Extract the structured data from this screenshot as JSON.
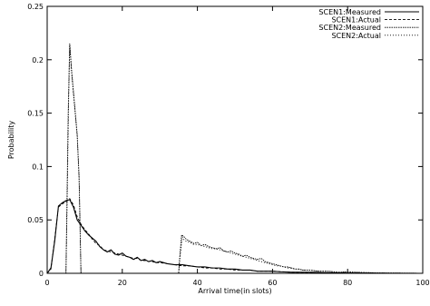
{
  "chart_data": {
    "type": "line",
    "title": "",
    "xlabel": "Arrival time(in slots)",
    "ylabel": "Probability",
    "xlim": [
      0,
      100
    ],
    "ylim": [
      0,
      0.25
    ],
    "x_ticks": [
      0,
      20,
      40,
      60,
      80,
      100
    ],
    "y_ticks": [
      0,
      0.05,
      0.1,
      0.15,
      0.2,
      0.25
    ],
    "x_tick_labels": [
      "0",
      "20",
      "40",
      "60",
      "80",
      "100"
    ],
    "y_tick_labels": [
      "0",
      "0.05",
      "0.1",
      "0.15",
      "0.2",
      "0.25"
    ],
    "grid": false,
    "legend_position": "top-right",
    "series": [
      {
        "name": "SCEN1:Measured",
        "dash": "solid",
        "points": [
          [
            0,
            0
          ],
          [
            1,
            0.005
          ],
          [
            2,
            0.03
          ],
          [
            3,
            0.063
          ],
          [
            4,
            0.066
          ],
          [
            5,
            0.068
          ],
          [
            6,
            0.069
          ],
          [
            7,
            0.062
          ],
          [
            8,
            0.05
          ],
          [
            9,
            0.045
          ],
          [
            10,
            0.04
          ],
          [
            11,
            0.036
          ],
          [
            12,
            0.033
          ],
          [
            13,
            0.03
          ],
          [
            14,
            0.025
          ],
          [
            15,
            0.022
          ],
          [
            16,
            0.02
          ],
          [
            17,
            0.022
          ],
          [
            18,
            0.018
          ],
          [
            19,
            0.017
          ],
          [
            20,
            0.019
          ],
          [
            21,
            0.016
          ],
          [
            22,
            0.015
          ],
          [
            23,
            0.013
          ],
          [
            24,
            0.015
          ],
          [
            25,
            0.012
          ],
          [
            26,
            0.013
          ],
          [
            27,
            0.011
          ],
          [
            28,
            0.012
          ],
          [
            29,
            0.01
          ],
          [
            30,
            0.011
          ],
          [
            32,
            0.009
          ],
          [
            34,
            0.008
          ],
          [
            36,
            0.008
          ],
          [
            38,
            0.007
          ],
          [
            40,
            0.006
          ],
          [
            42,
            0.006
          ],
          [
            44,
            0.005
          ],
          [
            46,
            0.005
          ],
          [
            48,
            0.004
          ],
          [
            50,
            0.004
          ],
          [
            52,
            0.003
          ],
          [
            54,
            0.003
          ],
          [
            56,
            0.002
          ],
          [
            58,
            0.002
          ],
          [
            60,
            0.002
          ],
          [
            62,
            0.0015
          ],
          [
            65,
            0.001
          ],
          [
            70,
            0.001
          ],
          [
            75,
            0.0005
          ],
          [
            80,
            0.0003
          ],
          [
            85,
            0.0002
          ],
          [
            90,
            0.0001
          ],
          [
            100,
            0
          ]
        ]
      },
      {
        "name": "SCEN1:Actual",
        "dash": "dashed",
        "points": [
          [
            0,
            0
          ],
          [
            1,
            0.004
          ],
          [
            2,
            0.032
          ],
          [
            3,
            0.062
          ],
          [
            4,
            0.065
          ],
          [
            5,
            0.067
          ],
          [
            6,
            0.07
          ],
          [
            7,
            0.064
          ],
          [
            8,
            0.053
          ],
          [
            9,
            0.046
          ],
          [
            10,
            0.041
          ],
          [
            11,
            0.037
          ],
          [
            12,
            0.032
          ],
          [
            13,
            0.028
          ],
          [
            14,
            0.026
          ],
          [
            15,
            0.022
          ],
          [
            16,
            0.021
          ],
          [
            17,
            0.02
          ],
          [
            18,
            0.019
          ],
          [
            19,
            0.018
          ],
          [
            20,
            0.017
          ],
          [
            21,
            0.016
          ],
          [
            22,
            0.015
          ],
          [
            23,
            0.014
          ],
          [
            24,
            0.014
          ],
          [
            25,
            0.012
          ],
          [
            26,
            0.012
          ],
          [
            27,
            0.011
          ],
          [
            28,
            0.011
          ],
          [
            29,
            0.01
          ],
          [
            30,
            0.01
          ],
          [
            32,
            0.009
          ],
          [
            34,
            0.008
          ],
          [
            36,
            0.007
          ],
          [
            38,
            0.007
          ],
          [
            40,
            0.006
          ],
          [
            42,
            0.005
          ],
          [
            44,
            0.005
          ],
          [
            46,
            0.004
          ],
          [
            48,
            0.004
          ],
          [
            50,
            0.003
          ],
          [
            52,
            0.003
          ],
          [
            54,
            0.003
          ],
          [
            56,
            0.002
          ],
          [
            58,
            0.002
          ],
          [
            60,
            0.002
          ],
          [
            62,
            0.0015
          ],
          [
            65,
            0.001
          ],
          [
            70,
            0.0008
          ],
          [
            75,
            0.0005
          ],
          [
            80,
            0.0003
          ],
          [
            85,
            0.0002
          ],
          [
            90,
            0.0001
          ],
          [
            100,
            0
          ]
        ]
      },
      {
        "name": "SCEN2:Measured",
        "dash": "dotted-dense",
        "points": [
          [
            0,
            0
          ],
          [
            5,
            0
          ],
          [
            5.2,
            0.05
          ],
          [
            5.6,
            0.15
          ],
          [
            6,
            0.215
          ],
          [
            6.5,
            0.19
          ],
          [
            7,
            0.17
          ],
          [
            7.5,
            0.15
          ],
          [
            8,
            0.13
          ],
          [
            8.5,
            0.09
          ],
          [
            9,
            0
          ],
          [
            35,
            0
          ],
          [
            35.3,
            0.015
          ],
          [
            35.8,
            0.036
          ],
          [
            36.5,
            0.034
          ],
          [
            37,
            0.032
          ],
          [
            38,
            0.03
          ],
          [
            39,
            0.028
          ],
          [
            40,
            0.029
          ],
          [
            41,
            0.026
          ],
          [
            42,
            0.027
          ],
          [
            43,
            0.025
          ],
          [
            44,
            0.024
          ],
          [
            45,
            0.023
          ],
          [
            46,
            0.024
          ],
          [
            47,
            0.021
          ],
          [
            48,
            0.02
          ],
          [
            49,
            0.021
          ],
          [
            50,
            0.019
          ],
          [
            51,
            0.018
          ],
          [
            52,
            0.016
          ],
          [
            53,
            0.017
          ],
          [
            54,
            0.015
          ],
          [
            55,
            0.014
          ],
          [
            56,
            0.013
          ],
          [
            57,
            0.014
          ],
          [
            58,
            0.011
          ],
          [
            59,
            0.01
          ],
          [
            60,
            0.009
          ],
          [
            61,
            0.008
          ],
          [
            62,
            0.007
          ],
          [
            63,
            0.006
          ],
          [
            64,
            0.006
          ],
          [
            65,
            0.005
          ],
          [
            66,
            0.004
          ],
          [
            67,
            0.004
          ],
          [
            68,
            0.003
          ],
          [
            70,
            0.003
          ],
          [
            72,
            0.002
          ],
          [
            74,
            0.002
          ],
          [
            76,
            0.0015
          ],
          [
            78,
            0.001
          ],
          [
            80,
            0.0015
          ],
          [
            82,
            0.001
          ],
          [
            84,
            0.0008
          ],
          [
            86,
            0.0006
          ],
          [
            88,
            0.0004
          ],
          [
            90,
            0.0003
          ],
          [
            94,
            0.0002
          ],
          [
            98,
            0.0001
          ],
          [
            100,
            0
          ]
        ]
      },
      {
        "name": "SCEN2:Actual",
        "dash": "dotted-sparse",
        "points": [
          [
            0,
            0
          ],
          [
            5,
            0
          ],
          [
            5.3,
            0.06
          ],
          [
            5.7,
            0.16
          ],
          [
            6,
            0.214
          ],
          [
            6.5,
            0.188
          ],
          [
            7,
            0.168
          ],
          [
            7.5,
            0.148
          ],
          [
            8,
            0.128
          ],
          [
            8.5,
            0.088
          ],
          [
            9,
            0
          ],
          [
            35,
            0
          ],
          [
            35.4,
            0.016
          ],
          [
            36,
            0.034
          ],
          [
            36.5,
            0.031
          ],
          [
            37,
            0.03
          ],
          [
            38,
            0.029
          ],
          [
            39,
            0.027
          ],
          [
            40,
            0.027
          ],
          [
            41,
            0.026
          ],
          [
            42,
            0.025
          ],
          [
            43,
            0.024
          ],
          [
            44,
            0.023
          ],
          [
            45,
            0.023
          ],
          [
            46,
            0.022
          ],
          [
            47,
            0.021
          ],
          [
            48,
            0.02
          ],
          [
            49,
            0.019
          ],
          [
            50,
            0.018
          ],
          [
            51,
            0.017
          ],
          [
            52,
            0.016
          ],
          [
            53,
            0.015
          ],
          [
            54,
            0.014
          ],
          [
            55,
            0.013
          ],
          [
            56,
            0.012
          ],
          [
            57,
            0.011
          ],
          [
            58,
            0.01
          ],
          [
            59,
            0.009
          ],
          [
            60,
            0.008
          ],
          [
            61,
            0.007
          ],
          [
            62,
            0.007
          ],
          [
            63,
            0.006
          ],
          [
            64,
            0.005
          ],
          [
            65,
            0.005
          ],
          [
            66,
            0.004
          ],
          [
            67,
            0.004
          ],
          [
            68,
            0.003
          ],
          [
            70,
            0.003
          ],
          [
            72,
            0.002
          ],
          [
            74,
            0.002
          ],
          [
            76,
            0.0015
          ],
          [
            78,
            0.001
          ],
          [
            80,
            0.001
          ],
          [
            82,
            0.0008
          ],
          [
            84,
            0.0007
          ],
          [
            86,
            0.0005
          ],
          [
            88,
            0.0004
          ],
          [
            90,
            0.0003
          ],
          [
            94,
            0.0002
          ],
          [
            98,
            0.0001
          ],
          [
            100,
            0
          ]
        ]
      }
    ]
  }
}
